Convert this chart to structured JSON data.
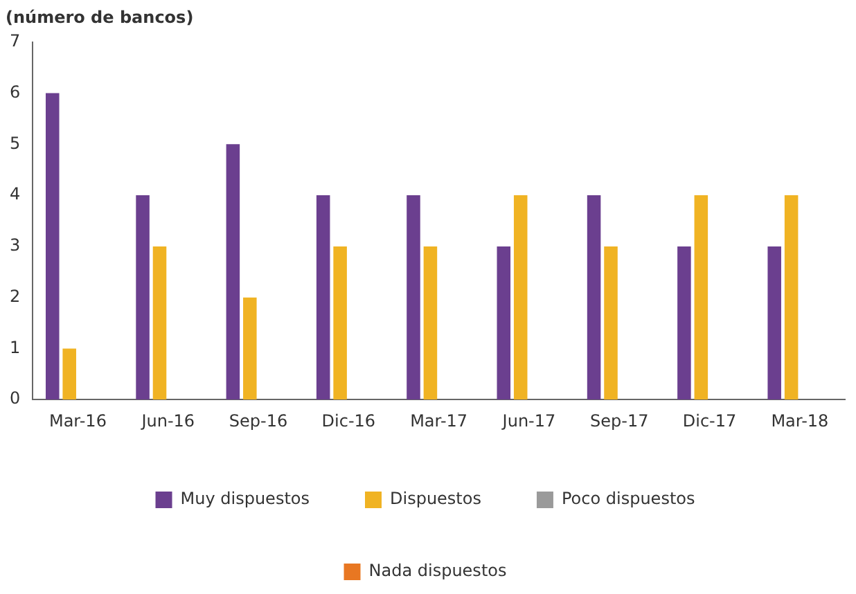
{
  "chart_data": {
    "type": "bar",
    "ylabel": "(número de bancos)",
    "categories": [
      "Mar-16",
      "Jun-16",
      "Sep-16",
      "Dic-16",
      "Mar-17",
      "Jun-17",
      "Sep-17",
      "Dic-17",
      "Mar-18"
    ],
    "series": [
      {
        "name": "Muy dispuestos",
        "color": "#6b3f8f",
        "values": [
          6,
          4,
          5,
          4,
          4,
          3,
          4,
          3,
          3
        ]
      },
      {
        "name": "Dispuestos",
        "color": "#f0b323",
        "values": [
          1,
          3,
          2,
          3,
          3,
          4,
          3,
          4,
          4
        ]
      },
      {
        "name": "Poco dispuestos",
        "color": "#9a9a9a",
        "values": [
          0,
          0,
          0,
          0,
          0,
          0,
          0,
          0,
          0
        ]
      },
      {
        "name": "Nada dispuestos",
        "color": "#e87722",
        "values": [
          0,
          0,
          0,
          0,
          0,
          0,
          0,
          0,
          0
        ]
      }
    ],
    "ylim": [
      0,
      7
    ],
    "yticks": [
      0,
      1,
      2,
      3,
      4,
      5,
      6,
      7
    ],
    "grid": false,
    "legend": "bottom"
  }
}
